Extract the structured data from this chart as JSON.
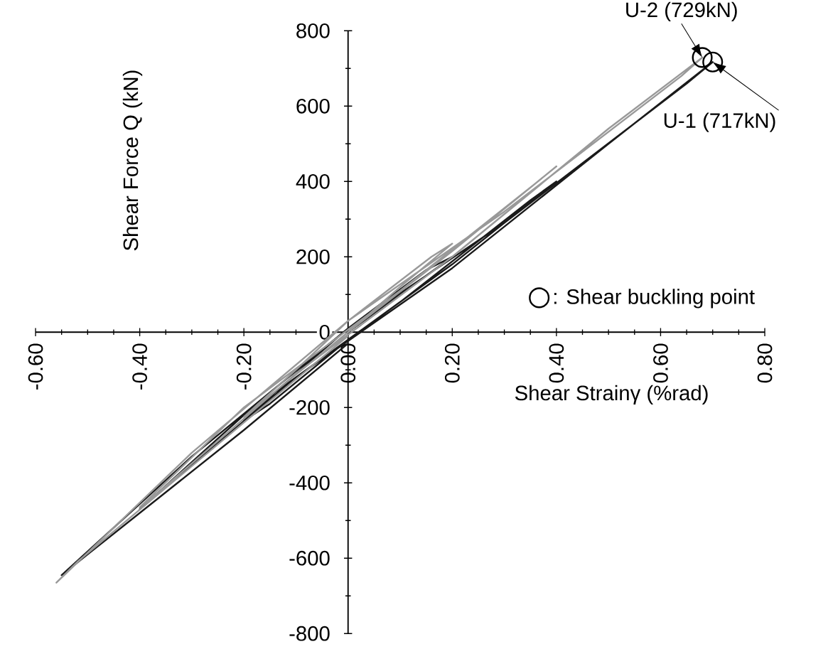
{
  "chart_data": {
    "type": "line",
    "xlabel": "Shear Strainγ (%rad)",
    "ylabel": "Shear Force Q (kN)",
    "xlim": [
      -0.6,
      0.8
    ],
    "ylim": [
      -800,
      800
    ],
    "xticks": [
      {
        "value": -0.6,
        "label": "-0.60"
      },
      {
        "value": -0.4,
        "label": "-0.40"
      },
      {
        "value": -0.2,
        "label": "-0.20"
      },
      {
        "value": 0,
        "label": "0.00"
      },
      {
        "value": 0.2,
        "label": "0.20"
      },
      {
        "value": 0.4,
        "label": "0.40"
      },
      {
        "value": 0.6,
        "label": "0.60"
      },
      {
        "value": 0.8,
        "label": "0.80"
      }
    ],
    "yticks": [
      -800,
      -600,
      -400,
      -200,
      0,
      200,
      400,
      600,
      800
    ],
    "grid": false,
    "legend": "right",
    "marker": "none",
    "line_style": "solid",
    "series": [
      {
        "color": "#1a1a1a",
        "x": [
          0,
          0.1,
          0.2,
          0.15,
          0.0,
          -0.1,
          -0.2,
          -0.15,
          0,
          0.2,
          0.4,
          0.35,
          0.1,
          -0.2,
          -0.4,
          -0.35,
          -0.1,
          0.2,
          0.5,
          0.7,
          0.65,
          0.3,
          0,
          -0.3,
          -0.55,
          -0.5,
          -0.2,
          0
        ],
        "values": [
          0,
          100,
          200,
          165,
          10,
          -110,
          -235,
          -190,
          -20,
          180,
          400,
          350,
          80,
          -220,
          -470,
          -410,
          -120,
          170,
          500,
          717,
          660,
          290,
          10,
          -330,
          -645,
          -590,
          -260,
          -30
        ]
      },
      {
        "color": "#999999",
        "x": [
          0,
          0.1,
          0.2,
          0.16,
          0.0,
          -0.1,
          -0.2,
          -0.16,
          0,
          0.2,
          0.4,
          0.36,
          0.1,
          -0.2,
          -0.4,
          -0.36,
          -0.1,
          0.2,
          0.5,
          0.68,
          0.64,
          0.3,
          0,
          -0.3,
          -0.56,
          -0.52,
          -0.2,
          0
        ],
        "values": [
          0,
          120,
          235,
          200,
          30,
          -100,
          -225,
          -180,
          0,
          215,
          440,
          395,
          110,
          -200,
          -465,
          -420,
          -110,
          200,
          540,
          729,
          680,
          320,
          30,
          -320,
          -665,
          -610,
          -240,
          -10
        ]
      },
      {
        "type": "scatter",
        "name": ": Shear buckling point",
        "color": "#000000",
        "marker": "circle",
        "x": [
          0.68,
          0.7
        ],
        "values": [
          729,
          717
        ]
      }
    ],
    "annotations": [
      {
        "text": "U-2 (729kN)",
        "x": 0.68,
        "y": 729
      },
      {
        "text": "U-1 (717kN)",
        "x": 0.7,
        "y": 717
      }
    ]
  }
}
